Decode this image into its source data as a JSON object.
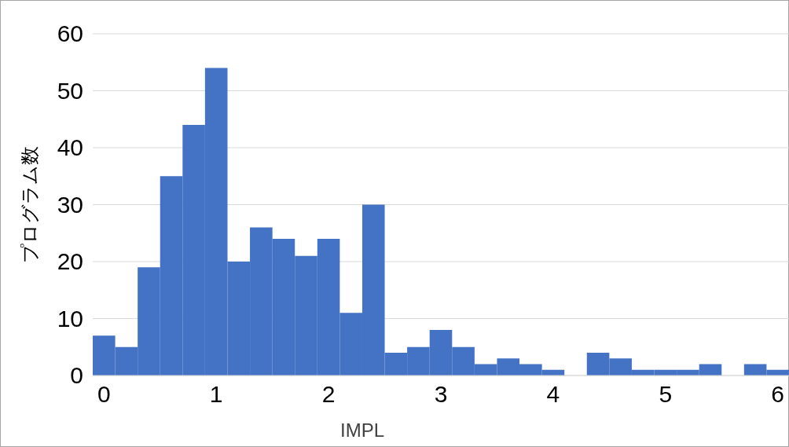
{
  "chart_data": {
    "type": "histogram",
    "xlabel": "IMPL",
    "ylabel": "プログラム数",
    "bins": [
      -0.1,
      0.1,
      0.3,
      0.5,
      0.7,
      0.9,
      1.1,
      1.3,
      1.5,
      1.7,
      1.9,
      2.1,
      2.3,
      2.5,
      2.7,
      2.9,
      3.1,
      3.3,
      3.5,
      3.7,
      3.9,
      4.1,
      4.3,
      4.5,
      4.7,
      4.9,
      5.1,
      5.3,
      5.5,
      5.7,
      5.9,
      6.1
    ],
    "values": [
      7,
      5,
      19,
      35,
      44,
      54,
      20,
      26,
      24,
      21,
      24,
      11,
      30,
      4,
      5,
      8,
      5,
      2,
      3,
      2,
      1,
      0,
      4,
      3,
      1,
      1,
      1,
      2,
      0,
      2,
      1
    ],
    "color": "#4472c4",
    "xlim": [
      -0.1,
      6.1
    ],
    "xticks": [
      0,
      1,
      2,
      3,
      4,
      5,
      6
    ],
    "ylim": [
      0,
      60
    ],
    "yticks": [
      0,
      10,
      20,
      30,
      40,
      50,
      60
    ],
    "grid": "y"
  }
}
